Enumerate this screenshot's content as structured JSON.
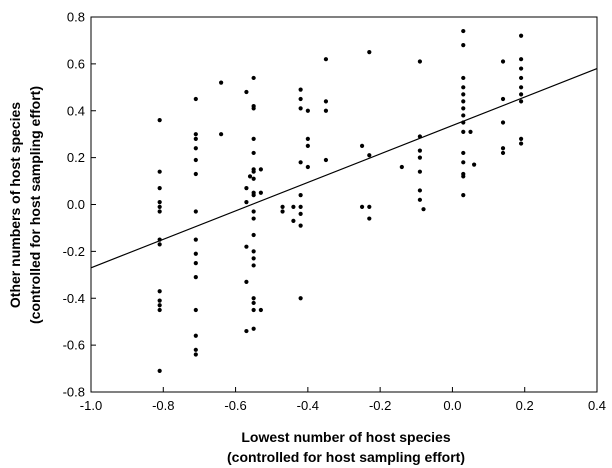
{
  "chart_data": {
    "type": "scatter",
    "title": "",
    "xlabel_lines": [
      "Lowest number of host species",
      "(controlled for host sampling effort)"
    ],
    "ylabel_lines": [
      "Other numbers of host species",
      "(controlled for host sampling effort)"
    ],
    "xlim": [
      -1.0,
      0.4
    ],
    "ylim": [
      -0.8,
      0.8
    ],
    "xticks": [
      "-1.0",
      "-0.8",
      "-0.6",
      "-0.4",
      "-0.2",
      "0.0",
      "0.2",
      "0.4"
    ],
    "yticks": [
      "-0.8",
      "-0.6",
      "-0.4",
      "-0.2",
      "0.0",
      "0.2",
      "0.4",
      "0.6",
      "0.8"
    ],
    "grid": false,
    "legend": "none",
    "point_color": "#000000",
    "trend_line": {
      "x": [
        -1.0,
        0.4
      ],
      "y": [
        -0.27,
        0.58
      ]
    },
    "points": [
      {
        "x": -0.81,
        "y": 0.36
      },
      {
        "x": -0.81,
        "y": 0.14
      },
      {
        "x": -0.81,
        "y": 0.07
      },
      {
        "x": -0.81,
        "y": 0.01
      },
      {
        "x": -0.81,
        "y": -0.01
      },
      {
        "x": -0.81,
        "y": -0.03
      },
      {
        "x": -0.81,
        "y": -0.15
      },
      {
        "x": -0.81,
        "y": -0.17
      },
      {
        "x": -0.81,
        "y": -0.37
      },
      {
        "x": -0.81,
        "y": -0.41
      },
      {
        "x": -0.81,
        "y": -0.43
      },
      {
        "x": -0.81,
        "y": -0.45
      },
      {
        "x": -0.81,
        "y": -0.71
      },
      {
        "x": -0.71,
        "y": 0.45
      },
      {
        "x": -0.71,
        "y": 0.3
      },
      {
        "x": -0.71,
        "y": 0.28
      },
      {
        "x": -0.71,
        "y": 0.24
      },
      {
        "x": -0.71,
        "y": 0.19
      },
      {
        "x": -0.71,
        "y": 0.13
      },
      {
        "x": -0.71,
        "y": -0.03
      },
      {
        "x": -0.71,
        "y": -0.15
      },
      {
        "x": -0.71,
        "y": -0.21
      },
      {
        "x": -0.71,
        "y": -0.25
      },
      {
        "x": -0.71,
        "y": -0.31
      },
      {
        "x": -0.71,
        "y": -0.45
      },
      {
        "x": -0.71,
        "y": -0.56
      },
      {
        "x": -0.71,
        "y": -0.62
      },
      {
        "x": -0.71,
        "y": -0.64
      },
      {
        "x": -0.64,
        "y": 0.52
      },
      {
        "x": -0.64,
        "y": 0.3
      },
      {
        "x": -0.57,
        "y": 0.48
      },
      {
        "x": -0.56,
        "y": 0.12
      },
      {
        "x": -0.57,
        "y": 0.07
      },
      {
        "x": -0.57,
        "y": 0.01
      },
      {
        "x": -0.57,
        "y": -0.18
      },
      {
        "x": -0.57,
        "y": -0.33
      },
      {
        "x": -0.57,
        "y": -0.54
      },
      {
        "x": -0.55,
        "y": 0.54
      },
      {
        "x": -0.55,
        "y": 0.42
      },
      {
        "x": -0.55,
        "y": 0.41
      },
      {
        "x": -0.55,
        "y": 0.28
      },
      {
        "x": -0.55,
        "y": 0.22
      },
      {
        "x": -0.55,
        "y": 0.15
      },
      {
        "x": -0.55,
        "y": 0.14
      },
      {
        "x": -0.55,
        "y": 0.11
      },
      {
        "x": -0.55,
        "y": 0.05
      },
      {
        "x": -0.55,
        "y": 0.04
      },
      {
        "x": -0.55,
        "y": -0.03
      },
      {
        "x": -0.55,
        "y": -0.06
      },
      {
        "x": -0.55,
        "y": -0.13
      },
      {
        "x": -0.55,
        "y": -0.2
      },
      {
        "x": -0.55,
        "y": -0.23
      },
      {
        "x": -0.55,
        "y": -0.26
      },
      {
        "x": -0.55,
        "y": -0.4
      },
      {
        "x": -0.55,
        "y": -0.42
      },
      {
        "x": -0.55,
        "y": -0.45
      },
      {
        "x": -0.55,
        "y": -0.53
      },
      {
        "x": -0.53,
        "y": 0.15
      },
      {
        "x": -0.53,
        "y": 0.05
      },
      {
        "x": -0.53,
        "y": -0.45
      },
      {
        "x": -0.47,
        "y": -0.01
      },
      {
        "x": -0.47,
        "y": -0.03
      },
      {
        "x": -0.44,
        "y": -0.01
      },
      {
        "x": -0.44,
        "y": -0.07
      },
      {
        "x": -0.42,
        "y": 0.49
      },
      {
        "x": -0.42,
        "y": 0.45
      },
      {
        "x": -0.42,
        "y": 0.41
      },
      {
        "x": -0.42,
        "y": 0.18
      },
      {
        "x": -0.42,
        "y": 0.04
      },
      {
        "x": -0.42,
        "y": -0.01
      },
      {
        "x": -0.42,
        "y": -0.04
      },
      {
        "x": -0.42,
        "y": -0.09
      },
      {
        "x": -0.42,
        "y": -0.4
      },
      {
        "x": -0.4,
        "y": 0.28
      },
      {
        "x": -0.4,
        "y": 0.4
      },
      {
        "x": -0.4,
        "y": 0.25
      },
      {
        "x": -0.4,
        "y": 0.16
      },
      {
        "x": -0.35,
        "y": 0.62
      },
      {
        "x": -0.35,
        "y": 0.44
      },
      {
        "x": -0.35,
        "y": 0.4
      },
      {
        "x": -0.35,
        "y": 0.19
      },
      {
        "x": -0.25,
        "y": 0.25
      },
      {
        "x": -0.25,
        "y": -0.01
      },
      {
        "x": -0.23,
        "y": 0.65
      },
      {
        "x": -0.23,
        "y": 0.21
      },
      {
        "x": -0.23,
        "y": -0.01
      },
      {
        "x": -0.23,
        "y": -0.06
      },
      {
        "x": -0.14,
        "y": 0.16
      },
      {
        "x": -0.09,
        "y": 0.61
      },
      {
        "x": -0.09,
        "y": 0.29
      },
      {
        "x": -0.09,
        "y": 0.23
      },
      {
        "x": -0.09,
        "y": 0.2
      },
      {
        "x": -0.09,
        "y": 0.14
      },
      {
        "x": -0.09,
        "y": 0.06
      },
      {
        "x": -0.09,
        "y": 0.02
      },
      {
        "x": -0.08,
        "y": -0.02
      },
      {
        "x": 0.03,
        "y": 0.74
      },
      {
        "x": 0.03,
        "y": 0.68
      },
      {
        "x": 0.03,
        "y": 0.54
      },
      {
        "x": 0.03,
        "y": 0.5
      },
      {
        "x": 0.03,
        "y": 0.47
      },
      {
        "x": 0.03,
        "y": 0.44
      },
      {
        "x": 0.03,
        "y": 0.41
      },
      {
        "x": 0.03,
        "y": 0.38
      },
      {
        "x": 0.03,
        "y": 0.35
      },
      {
        "x": 0.03,
        "y": 0.31
      },
      {
        "x": 0.03,
        "y": 0.22
      },
      {
        "x": 0.03,
        "y": 0.18
      },
      {
        "x": 0.03,
        "y": 0.13
      },
      {
        "x": 0.03,
        "y": 0.12
      },
      {
        "x": 0.03,
        "y": 0.04
      },
      {
        "x": 0.05,
        "y": 0.31
      },
      {
        "x": 0.06,
        "y": 0.17
      },
      {
        "x": 0.14,
        "y": 0.61
      },
      {
        "x": 0.14,
        "y": 0.45
      },
      {
        "x": 0.14,
        "y": 0.35
      },
      {
        "x": 0.14,
        "y": 0.24
      },
      {
        "x": 0.14,
        "y": 0.22
      },
      {
        "x": 0.19,
        "y": 0.72
      },
      {
        "x": 0.19,
        "y": 0.62
      },
      {
        "x": 0.19,
        "y": 0.58
      },
      {
        "x": 0.19,
        "y": 0.54
      },
      {
        "x": 0.19,
        "y": 0.5
      },
      {
        "x": 0.19,
        "y": 0.47
      },
      {
        "x": 0.19,
        "y": 0.44
      },
      {
        "x": 0.19,
        "y": 0.28
      },
      {
        "x": 0.19,
        "y": 0.26
      }
    ]
  }
}
